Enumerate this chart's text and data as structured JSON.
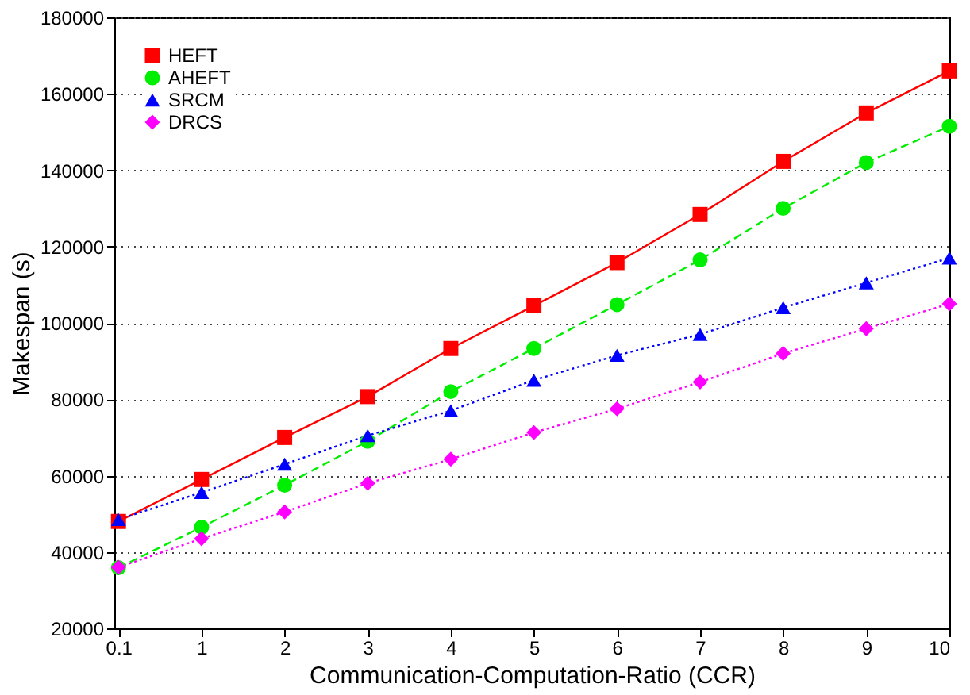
{
  "chart_data": {
    "type": "line",
    "xlabel": "Communication-Computation-Ratio (CCR)",
    "ylabel": "Makespan (s)",
    "categories": [
      "0.1",
      "1",
      "2",
      "3",
      "4",
      "5",
      "6",
      "7",
      "8",
      "9",
      "10"
    ],
    "ylim": [
      20000,
      180000
    ],
    "yticks": [
      20000,
      40000,
      60000,
      80000,
      100000,
      120000,
      140000,
      160000,
      180000
    ],
    "grid": "y",
    "legend": "top left",
    "series": [
      {
        "name": "HEFT",
        "color": "#ff0000",
        "marker": "square",
        "line_style": "solid",
        "values": [
          48000,
          59000,
          70000,
          80700,
          93300,
          104500,
          115800,
          128400,
          142300,
          155000,
          166000
        ]
      },
      {
        "name": "AHEFT",
        "color": "#00ee00",
        "marker": "circle",
        "line_style": "dashed",
        "values": [
          35900,
          46500,
          57500,
          69000,
          82000,
          93300,
          104800,
          116500,
          130000,
          142000,
          151500
        ]
      },
      {
        "name": "SRCM",
        "color": "#0000ff",
        "marker": "triangle",
        "line_style": "dotted",
        "values": [
          48500,
          55600,
          63000,
          70500,
          77000,
          85000,
          91500,
          97000,
          104000,
          110500,
          117000
        ]
      },
      {
        "name": "DRCS",
        "color": "#ff00ff",
        "marker": "diamond",
        "line_style": "dotted",
        "values": [
          36000,
          43500,
          50500,
          58000,
          64300,
          71300,
          77500,
          84500,
          92000,
          98500,
          105000
        ]
      }
    ]
  }
}
